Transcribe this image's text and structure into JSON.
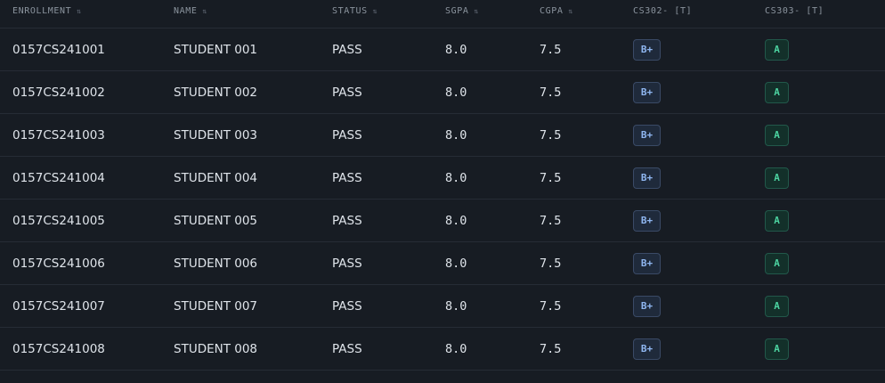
{
  "columns": {
    "enrollment": "ENROLLMENT",
    "name": "NAME",
    "status": "STATUS",
    "sgpa": "SGPA",
    "cgpa": "CGPA",
    "cs302": "CS302- [T]",
    "cs303": "CS303- [T]"
  },
  "icons": {
    "sort": "sort-icon"
  },
  "colors": {
    "background": "#171c23",
    "grade_bplus": "#8fb6f0",
    "grade_a": "#4cd3a0"
  },
  "rows": [
    {
      "enrollment": "0157CS241001",
      "name": "STUDENT 001",
      "status": "PASS",
      "sgpa": "8.0",
      "cgpa": "7.5",
      "cs302": "B+",
      "cs303": "A"
    },
    {
      "enrollment": "0157CS241002",
      "name": "STUDENT 002",
      "status": "PASS",
      "sgpa": "8.0",
      "cgpa": "7.5",
      "cs302": "B+",
      "cs303": "A"
    },
    {
      "enrollment": "0157CS241003",
      "name": "STUDENT 003",
      "status": "PASS",
      "sgpa": "8.0",
      "cgpa": "7.5",
      "cs302": "B+",
      "cs303": "A"
    },
    {
      "enrollment": "0157CS241004",
      "name": "STUDENT 004",
      "status": "PASS",
      "sgpa": "8.0",
      "cgpa": "7.5",
      "cs302": "B+",
      "cs303": "A"
    },
    {
      "enrollment": "0157CS241005",
      "name": "STUDENT 005",
      "status": "PASS",
      "sgpa": "8.0",
      "cgpa": "7.5",
      "cs302": "B+",
      "cs303": "A"
    },
    {
      "enrollment": "0157CS241006",
      "name": "STUDENT 006",
      "status": "PASS",
      "sgpa": "8.0",
      "cgpa": "7.5",
      "cs302": "B+",
      "cs303": "A"
    },
    {
      "enrollment": "0157CS241007",
      "name": "STUDENT 007",
      "status": "PASS",
      "sgpa": "8.0",
      "cgpa": "7.5",
      "cs302": "B+",
      "cs303": "A"
    },
    {
      "enrollment": "0157CS241008",
      "name": "STUDENT 008",
      "status": "PASS",
      "sgpa": "8.0",
      "cgpa": "7.5",
      "cs302": "B+",
      "cs303": "A"
    }
  ]
}
